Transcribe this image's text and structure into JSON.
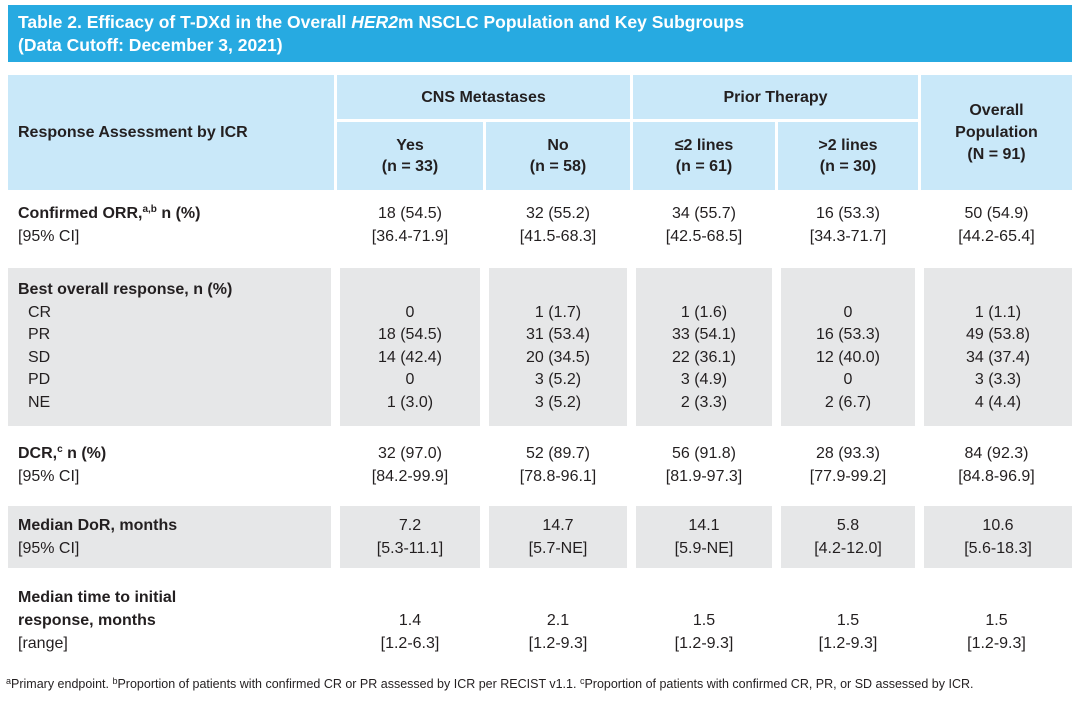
{
  "colors": {
    "accent": "#27AAE1",
    "header_bg": "#C9E8F9",
    "band_bg": "#E6E7E8",
    "title_text": "#FFFFFF",
    "body_text": "#231F20"
  },
  "title": {
    "line1_prefix": "Table 2. Efficacy of T-DXd in the Overall ",
    "line1_italic": "HER2",
    "line1_suffix": "m NSCLC Population and Key Subgroups",
    "line2": "(Data Cutoff: December 3, 2021)"
  },
  "header": {
    "row_label": "Response Assessment by ICR",
    "groups": [
      {
        "label": "CNS Metastases"
      },
      {
        "label": "Prior Therapy"
      }
    ],
    "columns": [
      {
        "label": "Yes",
        "n": "(n = 33)"
      },
      {
        "label": "No",
        "n": "(n = 58)"
      },
      {
        "label": "≤2 lines",
        "n": "(n = 61)"
      },
      {
        "label": ">2 lines",
        "n": "(n = 30)"
      }
    ],
    "overall": {
      "line1": "Overall",
      "line2": "Population",
      "line3": "(N = 91)"
    }
  },
  "sections": [
    {
      "label": "Confirmed ORR,",
      "sup": "a,b",
      "label2": " n (%)",
      "sub": "[95% CI]",
      "values": [
        "18 (54.5)",
        "32 (55.2)",
        "34 (55.7)",
        "16 (53.3)",
        "50 (54.9)"
      ],
      "ci": [
        "[36.4-71.9]",
        "[41.5-68.3]",
        "[42.5-68.5]",
        "[34.3-71.7]",
        "[44.2-65.4]"
      ]
    },
    {
      "label": "Best overall response, n (%)",
      "rows": [
        {
          "label": "CR",
          "values": [
            "0",
            "1 (1.7)",
            "1 (1.6)",
            "0",
            "1 (1.1)"
          ]
        },
        {
          "label": "PR",
          "values": [
            "18 (54.5)",
            "31 (53.4)",
            "33 (54.1)",
            "16 (53.3)",
            "49 (53.8)"
          ]
        },
        {
          "label": "SD",
          "values": [
            "14 (42.4)",
            "20 (34.5)",
            "22 (36.1)",
            "12 (40.0)",
            "34 (37.4)"
          ]
        },
        {
          "label": "PD",
          "values": [
            "0",
            "3 (5.2)",
            "3 (4.9)",
            "0",
            "3 (3.3)"
          ]
        },
        {
          "label": "NE",
          "values": [
            "1 (3.0)",
            "3 (5.2)",
            "2 (3.3)",
            "2 (6.7)",
            "4 (4.4)"
          ]
        }
      ]
    },
    {
      "label": "DCR,",
      "sup": "c",
      "label2": " n (%)",
      "sub": "[95% CI]",
      "values": [
        "32 (97.0)",
        "52 (89.7)",
        "56 (91.8)",
        "28 (93.3)",
        "84 (92.3)"
      ],
      "ci": [
        "[84.2-99.9]",
        "[78.8-96.1]",
        "[81.9-97.3]",
        "[77.9-99.2]",
        "[84.8-96.9]"
      ]
    },
    {
      "label": "Median DoR, months",
      "sub": "[95% CI]",
      "values": [
        "7.2",
        "14.7",
        "14.1",
        "5.8",
        "10.6"
      ],
      "ci": [
        "[5.3-11.1]",
        "[5.7-NE]",
        "[5.9-NE]",
        "[4.2-12.0]",
        "[5.6-18.3]"
      ]
    },
    {
      "label_line1": "Median time to initial",
      "label_line2": "response, months",
      "sub": "[range]",
      "values": [
        "1.4",
        "2.1",
        "1.5",
        "1.5",
        "1.5"
      ],
      "ci": [
        "[1.2-6.3]",
        "[1.2-9.3]",
        "[1.2-9.3]",
        "[1.2-9.3]",
        "[1.2-9.3]"
      ]
    }
  ],
  "footnote": {
    "parts": [
      {
        "sup": "a",
        "text": "Primary endpoint. "
      },
      {
        "sup": "b",
        "text": "Proportion of patients with confirmed CR or PR assessed by ICR per RECIST v1.1. "
      },
      {
        "sup": "c",
        "text": "Proportion of patients with confirmed CR, PR, or SD assessed by ICR."
      }
    ]
  }
}
